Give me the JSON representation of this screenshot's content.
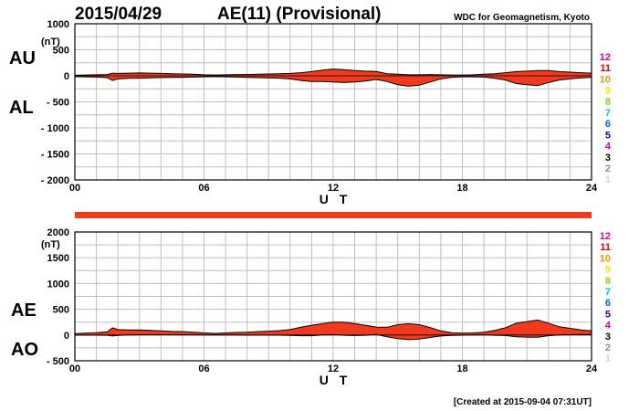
{
  "header": {
    "date": "2015/04/29",
    "title": "AE(11) (Provisional)",
    "source": "WDC for Geomagnetism, Kyoto"
  },
  "footer": {
    "created": "[Created at 2015-09-04 07:31UT]"
  },
  "colors": {
    "fill": "#f03a1e",
    "grid": "#bdbdbd",
    "outline": "#000000",
    "bar": "#f03a1e"
  },
  "station_count_legend": [
    {
      "label": "12",
      "color": "#e6007e"
    },
    {
      "label": "11",
      "color": "#e60000"
    },
    {
      "label": "10",
      "color": "#f09600"
    },
    {
      "label": "9",
      "color": "#f0e600"
    },
    {
      "label": "8",
      "color": "#82dc00"
    },
    {
      "label": "7",
      "color": "#00c8dc"
    },
    {
      "label": "6",
      "color": "#0064f0"
    },
    {
      "label": "5",
      "color": "#1e00b4"
    },
    {
      "label": "4",
      "color": "#c800c8"
    },
    {
      "label": "3",
      "color": "#000000"
    },
    {
      "label": "2",
      "color": "#8c8c8c"
    },
    {
      "label": "1",
      "color": "#d2d2d2"
    }
  ],
  "chart_data": [
    {
      "type": "area",
      "name": "AU/AL",
      "labels_upper": "AU",
      "labels_lower": "AL",
      "unit": "(nT)",
      "ylim": [
        -2000,
        1000
      ],
      "yticks": [
        1000,
        500,
        0,
        -500,
        -1000,
        -1500,
        -2000
      ],
      "ytick_labels": [
        "1000",
        "500",
        "0",
        "- 500",
        "- 1000",
        "- 1500",
        "- 2000"
      ],
      "xlim": [
        0,
        24
      ],
      "xticks": [
        0,
        6,
        12,
        18,
        24
      ],
      "xtick_labels": [
        "00",
        "06",
        "12",
        "18",
        "24"
      ],
      "xlabel": "U T",
      "grid": true,
      "x": [
        0,
        0.5,
        1,
        1.5,
        1.75,
        2,
        2.5,
        3,
        3.5,
        4,
        4.5,
        5,
        5.5,
        6,
        6.5,
        7,
        7.5,
        8,
        8.5,
        9,
        9.5,
        10,
        10.5,
        11,
        11.5,
        12,
        12.5,
        13,
        13.5,
        14,
        14.5,
        15,
        15.5,
        16,
        16.5,
        17,
        17.5,
        18,
        18.5,
        19,
        19.5,
        20,
        20.5,
        21,
        21.5,
        22,
        22.5,
        23,
        23.5,
        24
      ],
      "series": [
        {
          "name": "AU",
          "values": [
            10,
            15,
            20,
            25,
            50,
            45,
            50,
            55,
            50,
            45,
            40,
            35,
            30,
            20,
            15,
            20,
            25,
            25,
            30,
            35,
            40,
            45,
            60,
            80,
            110,
            130,
            120,
            100,
            90,
            85,
            40,
            30,
            20,
            20,
            25,
            20,
            15,
            15,
            20,
            30,
            40,
            60,
            80,
            90,
            100,
            100,
            80,
            70,
            60,
            50
          ]
        },
        {
          "name": "AL",
          "values": [
            -15,
            -20,
            -25,
            -35,
            -90,
            -60,
            -50,
            -45,
            -40,
            -35,
            -30,
            -30,
            -25,
            -20,
            -15,
            -20,
            -25,
            -30,
            -35,
            -40,
            -45,
            -60,
            -90,
            -110,
            -110,
            -120,
            -130,
            -120,
            -100,
            -70,
            -110,
            -170,
            -200,
            -180,
            -120,
            -60,
            -30,
            -20,
            -20,
            -25,
            -50,
            -80,
            -150,
            -170,
            -190,
            -130,
            -80,
            -60,
            -40,
            -30
          ]
        }
      ]
    },
    {
      "type": "area",
      "name": "AE/AO",
      "labels_upper": "AE",
      "labels_lower": "AO",
      "unit": "(nT)",
      "ylim": [
        -500,
        2000
      ],
      "yticks": [
        2000,
        1500,
        1000,
        500,
        0,
        -500
      ],
      "ytick_labels": [
        "2000",
        "1500",
        "1000",
        "500",
        "0",
        "- 500"
      ],
      "xlim": [
        0,
        24
      ],
      "xticks": [
        0,
        6,
        12,
        18,
        24
      ],
      "xtick_labels": [
        "00",
        "06",
        "12",
        "18",
        "24"
      ],
      "xlabel": "U T",
      "grid": true,
      "x": [
        0,
        0.5,
        1,
        1.5,
        1.75,
        2,
        2.5,
        3,
        3.5,
        4,
        4.5,
        5,
        5.5,
        6,
        6.5,
        7,
        7.5,
        8,
        8.5,
        9,
        9.5,
        10,
        10.5,
        11,
        11.5,
        12,
        12.5,
        13,
        13.5,
        14,
        14.5,
        15,
        15.5,
        16,
        16.5,
        17,
        17.5,
        18,
        18.5,
        19,
        19.5,
        20,
        20.5,
        21,
        21.5,
        22,
        22.5,
        23,
        23.5,
        24
      ],
      "series": [
        {
          "name": "AE",
          "values": [
            25,
            35,
            45,
            60,
            140,
            105,
            100,
            100,
            90,
            80,
            70,
            65,
            55,
            40,
            30,
            40,
            50,
            55,
            65,
            75,
            85,
            105,
            150,
            190,
            220,
            250,
            250,
            220,
            190,
            155,
            150,
            200,
            220,
            200,
            145,
            80,
            45,
            35,
            40,
            55,
            90,
            140,
            230,
            260,
            290,
            230,
            160,
            130,
            100,
            80
          ]
        },
        {
          "name": "AO",
          "values": [
            -3,
            -3,
            -3,
            -5,
            -20,
            -8,
            0,
            5,
            5,
            5,
            5,
            3,
            3,
            0,
            0,
            0,
            0,
            -3,
            -3,
            -3,
            -3,
            -8,
            -15,
            -15,
            0,
            5,
            -5,
            -10,
            -5,
            8,
            -35,
            -70,
            -90,
            -80,
            -48,
            -20,
            -8,
            -3,
            0,
            3,
            -5,
            -10,
            -35,
            -40,
            -45,
            -15,
            0,
            5,
            10,
            10
          ]
        }
      ]
    }
  ]
}
